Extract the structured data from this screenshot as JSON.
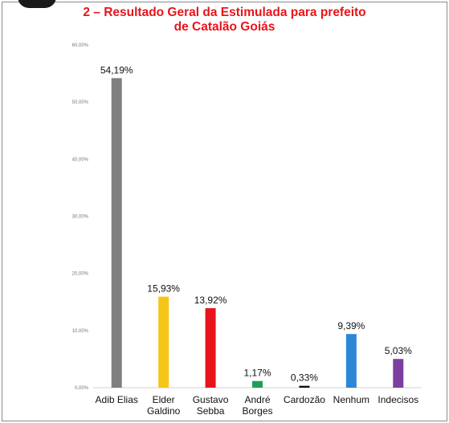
{
  "title": "2 – Resultado Geral da Estimulada para prefeito\nde Catalão Goiás",
  "chart_data": {
    "type": "bar",
    "title": "2 – Resultado Geral da Estimulada para prefeito\nde Catalão Goiás",
    "categories": [
      [
        "Adib Elias"
      ],
      [
        "Elder",
        "Galdino"
      ],
      [
        "Gustavo",
        "Sebba"
      ],
      [
        "André",
        "Borges"
      ],
      [
        "Cardozão"
      ],
      [
        "Nenhum"
      ],
      [
        "Indecisos"
      ]
    ],
    "values": [
      54.19,
      15.93,
      13.92,
      1.17,
      0.33,
      9.39,
      5.03
    ],
    "data_labels": [
      "54,19%",
      "15,93%",
      "13,92%",
      "1,17%",
      "0,33%",
      "9,39%",
      "5,03%"
    ],
    "bar_colors": [
      "#7f7f7f",
      "#f5c518",
      "#e8141b",
      "#1f9e5a",
      "#111111",
      "#2e86d6",
      "#7b3fa0"
    ],
    "ylim": [
      0,
      60
    ],
    "yticks": [
      0,
      10,
      20,
      30,
      40,
      50,
      60
    ],
    "ytick_labels": [
      "0,00%",
      "10,00%",
      "20,00%",
      "30,00%",
      "40,00%",
      "50,00%",
      "60,00%"
    ],
    "grid": false,
    "legend": "none"
  }
}
